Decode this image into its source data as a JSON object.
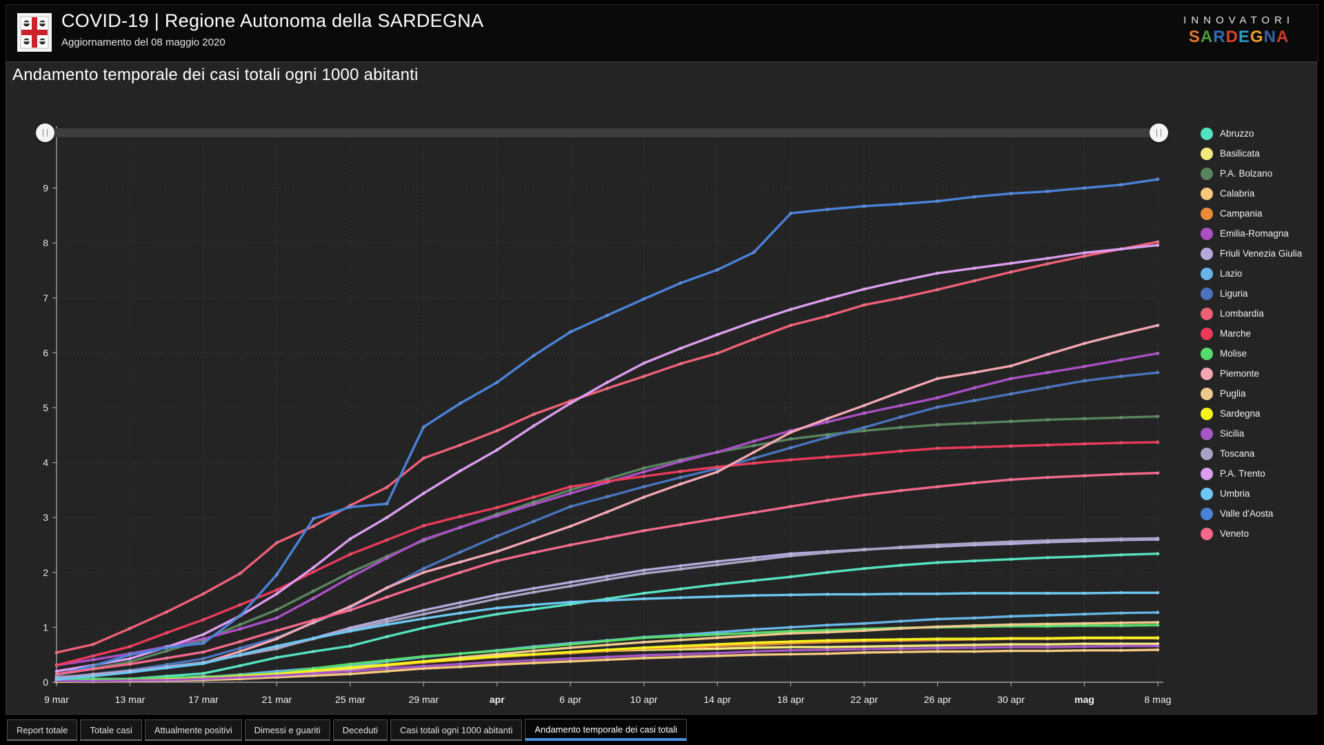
{
  "header": {
    "title": "COVID-19 | Regione Autonoma della SARDEGNA",
    "subtitle": "Aggiornamento del 08 maggio 2020",
    "logo": "sardegna-coat-of-arms",
    "brand_top": "INNOVATORI",
    "brand_letters": [
      {
        "ch": "S",
        "color": "#e4792f"
      },
      {
        "ch": "A",
        "color": "#4d9a3f"
      },
      {
        "ch": "R",
        "color": "#2f6db6"
      },
      {
        "ch": "D",
        "color": "#d6452e"
      },
      {
        "ch": "E",
        "color": "#2f9ac4"
      },
      {
        "ch": "G",
        "color": "#e8a02e"
      },
      {
        "ch": "N",
        "color": "#3b62ae"
      },
      {
        "ch": "A",
        "color": "#cc3b2e"
      }
    ]
  },
  "chart": {
    "title": "Andamento temporale dei casi totali ogni 1000 abitanti"
  },
  "chart_data": {
    "type": "line",
    "title": "Andamento temporale dei casi totali ogni 1000 abitanti",
    "xlabel": "",
    "ylabel": "",
    "ylim": [
      0,
      10
    ],
    "yticks": [
      0,
      1,
      2,
      3,
      4,
      5,
      6,
      7,
      8,
      9,
      10
    ],
    "grid": true,
    "legend_position": "right",
    "x": [
      "9 mar",
      "11 mar",
      "13 mar",
      "15 mar",
      "17 mar",
      "19 mar",
      "21 mar",
      "23 mar",
      "25 mar",
      "27 mar",
      "29 mar",
      "31 mar",
      "2 apr",
      "4 apr",
      "6 apr",
      "8 apr",
      "10 apr",
      "12 apr",
      "14 apr",
      "16 apr",
      "18 apr",
      "20 apr",
      "22 apr",
      "24 apr",
      "26 apr",
      "28 apr",
      "30 apr",
      "2 mag",
      "4 mag",
      "6 mag",
      "8 mag"
    ],
    "x_tick_labels": [
      {
        "index": 0,
        "label": "9 mar",
        "bold": false
      },
      {
        "index": 2,
        "label": "13 mar",
        "bold": false
      },
      {
        "index": 4,
        "label": "17 mar",
        "bold": false
      },
      {
        "index": 6,
        "label": "21 mar",
        "bold": false
      },
      {
        "index": 8,
        "label": "25 mar",
        "bold": false
      },
      {
        "index": 10,
        "label": "29 mar",
        "bold": false
      },
      {
        "index": 12,
        "label": "apr",
        "bold": true
      },
      {
        "index": 14,
        "label": "6 apr",
        "bold": false
      },
      {
        "index": 16,
        "label": "10 apr",
        "bold": false
      },
      {
        "index": 18,
        "label": "14 apr",
        "bold": false
      },
      {
        "index": 20,
        "label": "18 apr",
        "bold": false
      },
      {
        "index": 22,
        "label": "22 apr",
        "bold": false
      },
      {
        "index": 24,
        "label": "26 apr",
        "bold": false
      },
      {
        "index": 26,
        "label": "30 apr",
        "bold": false
      },
      {
        "index": 28,
        "label": "mag",
        "bold": true
      },
      {
        "index": 30,
        "label": "8 mag",
        "bold": false
      }
    ],
    "series": [
      {
        "name": "Abruzzo",
        "color": "#54e3c0",
        "values": [
          0.02,
          0.04,
          0.06,
          0.11,
          0.16,
          0.3,
          0.45,
          0.56,
          0.66,
          0.83,
          0.99,
          1.12,
          1.24,
          1.33,
          1.42,
          1.52,
          1.62,
          1.7,
          1.78,
          1.85,
          1.92,
          2.0,
          2.07,
          2.13,
          2.18,
          2.21,
          2.24,
          2.27,
          2.29,
          2.32,
          2.34
        ]
      },
      {
        "name": "Basilicata",
        "color": "#f2ea80",
        "values": [
          0.01,
          0.02,
          0.03,
          0.07,
          0.1,
          0.11,
          0.12,
          0.18,
          0.24,
          0.31,
          0.38,
          0.43,
          0.48,
          0.51,
          0.54,
          0.57,
          0.59,
          0.6,
          0.61,
          0.63,
          0.64,
          0.64,
          0.65,
          0.66,
          0.67,
          0.68,
          0.69,
          0.69,
          0.7,
          0.7,
          0.7
        ]
      },
      {
        "name": "P.A. Bolzano",
        "color": "#59855e",
        "values": [
          0.13,
          0.25,
          0.37,
          0.57,
          0.77,
          1.05,
          1.32,
          1.66,
          2.0,
          2.29,
          2.58,
          2.82,
          3.06,
          3.28,
          3.5,
          3.7,
          3.9,
          4.05,
          4.19,
          4.31,
          4.43,
          4.51,
          4.58,
          4.64,
          4.69,
          4.72,
          4.75,
          4.78,
          4.8,
          4.82,
          4.84
        ]
      },
      {
        "name": "Calabria",
        "color": "#f6c97e",
        "values": [
          0.01,
          0.01,
          0.02,
          0.03,
          0.04,
          0.06,
          0.09,
          0.12,
          0.15,
          0.2,
          0.25,
          0.28,
          0.32,
          0.35,
          0.38,
          0.41,
          0.44,
          0.46,
          0.48,
          0.5,
          0.51,
          0.52,
          0.54,
          0.55,
          0.56,
          0.56,
          0.57,
          0.57,
          0.58,
          0.58,
          0.59
        ]
      },
      {
        "name": "Campania",
        "color": "#e98c38",
        "values": [
          0.02,
          0.03,
          0.04,
          0.06,
          0.08,
          0.12,
          0.16,
          0.2,
          0.25,
          0.3,
          0.36,
          0.41,
          0.46,
          0.5,
          0.53,
          0.57,
          0.61,
          0.63,
          0.66,
          0.68,
          0.71,
          0.73,
          0.75,
          0.76,
          0.77,
          0.78,
          0.79,
          0.79,
          0.8,
          0.8,
          0.8
        ]
      },
      {
        "name": "Emilia-Romagna",
        "color": "#a94fc4",
        "values": [
          0.31,
          0.41,
          0.52,
          0.65,
          0.79,
          0.97,
          1.17,
          1.53,
          1.91,
          2.26,
          2.6,
          2.82,
          3.03,
          3.24,
          3.44,
          3.64,
          3.83,
          4.02,
          4.19,
          4.39,
          4.58,
          4.74,
          4.9,
          5.04,
          5.18,
          5.36,
          5.53,
          5.64,
          5.75,
          5.87,
          5.99
        ]
      },
      {
        "name": "Friuli Venezia Giulia",
        "color": "#b4a8dc",
        "values": [
          0.09,
          0.14,
          0.2,
          0.28,
          0.36,
          0.49,
          0.61,
          0.8,
          0.99,
          1.15,
          1.31,
          1.45,
          1.59,
          1.71,
          1.82,
          1.93,
          2.04,
          2.12,
          2.2,
          2.27,
          2.34,
          2.38,
          2.42,
          2.45,
          2.47,
          2.5,
          2.52,
          2.55,
          2.57,
          2.59,
          2.6
        ]
      },
      {
        "name": "Lazio",
        "color": "#67b5e8",
        "values": [
          0.02,
          0.03,
          0.05,
          0.07,
          0.09,
          0.14,
          0.2,
          0.25,
          0.29,
          0.38,
          0.46,
          0.52,
          0.58,
          0.65,
          0.71,
          0.76,
          0.82,
          0.86,
          0.91,
          0.96,
          1.0,
          1.04,
          1.07,
          1.11,
          1.15,
          1.17,
          1.2,
          1.22,
          1.24,
          1.26,
          1.27
        ]
      },
      {
        "name": "Liguria",
        "color": "#4a72bd",
        "values": [
          0.08,
          0.15,
          0.22,
          0.32,
          0.43,
          0.62,
          0.81,
          1.08,
          1.36,
          1.72,
          2.07,
          2.37,
          2.66,
          2.93,
          3.2,
          3.38,
          3.56,
          3.73,
          3.89,
          4.08,
          4.27,
          4.46,
          4.64,
          4.83,
          5.01,
          5.13,
          5.25,
          5.37,
          5.49,
          5.57,
          5.64
        ]
      },
      {
        "name": "Lombardia",
        "color": "#ef6078",
        "values": [
          0.54,
          0.69,
          0.98,
          1.28,
          1.61,
          1.98,
          2.54,
          2.84,
          3.22,
          3.55,
          4.08,
          4.32,
          4.58,
          4.88,
          5.12,
          5.35,
          5.57,
          5.8,
          5.99,
          6.25,
          6.5,
          6.67,
          6.87,
          7.0,
          7.15,
          7.31,
          7.47,
          7.62,
          7.76,
          7.89,
          8.02
        ]
      },
      {
        "name": "Marche",
        "color": "#ea3a5a",
        "values": [
          0.31,
          0.48,
          0.65,
          0.9,
          1.14,
          1.41,
          1.68,
          2.01,
          2.33,
          2.59,
          2.85,
          3.02,
          3.18,
          3.37,
          3.56,
          3.66,
          3.75,
          3.84,
          3.92,
          3.99,
          4.05,
          4.1,
          4.15,
          4.21,
          4.26,
          4.28,
          4.3,
          4.32,
          4.34,
          4.36,
          4.37
        ]
      },
      {
        "name": "Molise",
        "color": "#55dc6c",
        "values": [
          0.05,
          0.06,
          0.06,
          0.08,
          0.09,
          0.13,
          0.16,
          0.25,
          0.33,
          0.4,
          0.47,
          0.52,
          0.57,
          0.63,
          0.69,
          0.75,
          0.81,
          0.84,
          0.87,
          0.9,
          0.93,
          0.95,
          0.97,
          0.99,
          1.0,
          1.01,
          1.02,
          1.02,
          1.03,
          1.03,
          1.04
        ]
      },
      {
        "name": "Piemonte",
        "color": "#f3a7b2",
        "values": [
          0.08,
          0.14,
          0.2,
          0.28,
          0.35,
          0.56,
          0.79,
          1.09,
          1.38,
          1.72,
          2.0,
          2.19,
          2.38,
          2.61,
          2.84,
          3.1,
          3.37,
          3.61,
          3.83,
          4.19,
          4.55,
          4.8,
          5.04,
          5.29,
          5.53,
          5.64,
          5.76,
          5.97,
          6.17,
          6.34,
          6.5
        ]
      },
      {
        "name": "Puglia",
        "color": "#f0ca8c",
        "values": [
          0.01,
          0.02,
          0.03,
          0.05,
          0.06,
          0.1,
          0.14,
          0.2,
          0.25,
          0.31,
          0.38,
          0.45,
          0.51,
          0.57,
          0.63,
          0.68,
          0.73,
          0.77,
          0.81,
          0.85,
          0.89,
          0.91,
          0.94,
          0.98,
          1.01,
          1.03,
          1.05,
          1.06,
          1.07,
          1.08,
          1.09
        ]
      },
      {
        "name": "Sardegna",
        "color": "#f4f41c",
        "values": [
          0.01,
          0.02,
          0.03,
          0.05,
          0.07,
          0.11,
          0.15,
          0.21,
          0.27,
          0.32,
          0.38,
          0.42,
          0.47,
          0.51,
          0.55,
          0.59,
          0.63,
          0.66,
          0.69,
          0.72,
          0.74,
          0.76,
          0.77,
          0.78,
          0.79,
          0.79,
          0.8,
          0.8,
          0.81,
          0.81,
          0.81
        ]
      },
      {
        "name": "Sicilia",
        "color": "#a557c6",
        "values": [
          0.02,
          0.02,
          0.03,
          0.04,
          0.06,
          0.09,
          0.12,
          0.16,
          0.2,
          0.25,
          0.29,
          0.33,
          0.37,
          0.4,
          0.43,
          0.46,
          0.49,
          0.51,
          0.53,
          0.56,
          0.58,
          0.59,
          0.6,
          0.61,
          0.62,
          0.63,
          0.64,
          0.64,
          0.65,
          0.66,
          0.66
        ]
      },
      {
        "name": "Toscana",
        "color": "#a9a2c4",
        "values": [
          0.08,
          0.13,
          0.19,
          0.28,
          0.36,
          0.49,
          0.62,
          0.79,
          0.95,
          1.1,
          1.24,
          1.38,
          1.52,
          1.64,
          1.75,
          1.87,
          1.98,
          2.06,
          2.14,
          2.22,
          2.3,
          2.36,
          2.41,
          2.46,
          2.5,
          2.53,
          2.56,
          2.58,
          2.6,
          2.61,
          2.62
        ]
      },
      {
        "name": "P.A. Trento",
        "color": "#dc9df0",
        "values": [
          0.2,
          0.31,
          0.43,
          0.64,
          0.87,
          1.21,
          1.61,
          2.09,
          2.61,
          3.0,
          3.44,
          3.85,
          4.23,
          4.67,
          5.08,
          5.46,
          5.81,
          6.08,
          6.33,
          6.57,
          6.79,
          6.98,
          7.16,
          7.31,
          7.45,
          7.54,
          7.63,
          7.72,
          7.82,
          7.89,
          7.96
        ]
      },
      {
        "name": "Umbria",
        "color": "#6cc7f2",
        "values": [
          0.05,
          0.11,
          0.18,
          0.26,
          0.34,
          0.5,
          0.66,
          0.8,
          0.93,
          1.05,
          1.16,
          1.26,
          1.35,
          1.41,
          1.46,
          1.49,
          1.52,
          1.54,
          1.56,
          1.58,
          1.59,
          1.6,
          1.6,
          1.61,
          1.61,
          1.62,
          1.62,
          1.62,
          1.62,
          1.63,
          1.63
        ]
      },
      {
        "name": "Valle d'Aosta",
        "color": "#4a82d9",
        "values": [
          0.13,
          0.3,
          0.5,
          0.63,
          0.71,
          1.21,
          1.96,
          2.98,
          3.19,
          3.25,
          4.65,
          5.08,
          5.46,
          5.95,
          6.38,
          6.68,
          6.98,
          7.27,
          7.51,
          7.83,
          8.54,
          8.61,
          8.67,
          8.71,
          8.76,
          8.84,
          8.9,
          8.94,
          9.0,
          9.06,
          9.16
        ]
      },
      {
        "name": "Veneto",
        "color": "#f4688c",
        "values": [
          0.15,
          0.24,
          0.33,
          0.44,
          0.55,
          0.74,
          0.94,
          1.13,
          1.31,
          1.55,
          1.78,
          2.0,
          2.21,
          2.36,
          2.5,
          2.63,
          2.76,
          2.87,
          2.98,
          3.09,
          3.2,
          3.31,
          3.41,
          3.49,
          3.56,
          3.63,
          3.69,
          3.73,
          3.76,
          3.79,
          3.81
        ]
      }
    ]
  },
  "tabs": [
    {
      "label": "Report totale",
      "active": false
    },
    {
      "label": "Totale casi",
      "active": false
    },
    {
      "label": "Attualmente positivi",
      "active": false
    },
    {
      "label": "Dimessi e guariti",
      "active": false
    },
    {
      "label": "Deceduti",
      "active": false
    },
    {
      "label": "Casi totali ogni 1000 abitanti",
      "active": false
    },
    {
      "label": "Andamento temporale dei casi totali",
      "active": true
    }
  ],
  "colors": {
    "page_bg": "#000000",
    "panel_bg": "#242424",
    "grid": "#3d3d3d",
    "axis": "#a0a0a0",
    "tab_accent": "#4a90e2"
  }
}
